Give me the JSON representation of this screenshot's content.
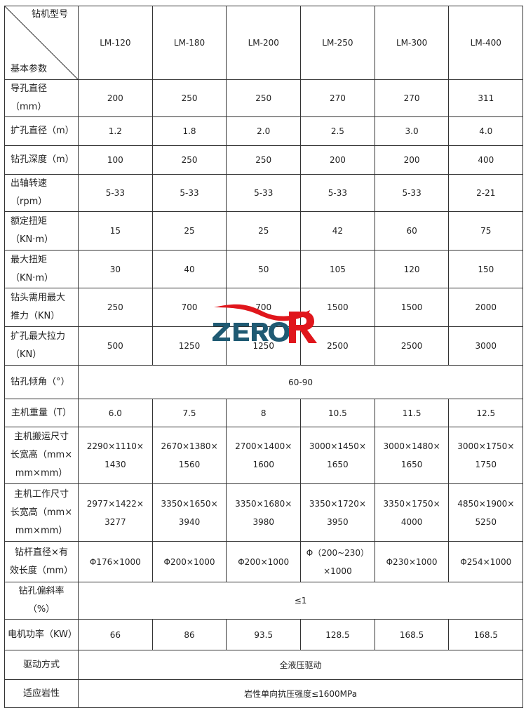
{
  "header": {
    "corner_top": "钻机型号",
    "corner_bottom": "基本参数",
    "models": [
      "LM-120",
      "LM-180",
      "LM-200",
      "LM-250",
      "LM-300",
      "LM-400"
    ]
  },
  "rows": [
    {
      "label": "导孔直径（mm）",
      "values": [
        "200",
        "250",
        "250",
        "270",
        "270",
        "311"
      ]
    },
    {
      "label": "扩孔直径（m）",
      "values": [
        "1.2",
        "1.8",
        "2.0",
        "2.5",
        "3.0",
        "4.0"
      ]
    },
    {
      "label": "钻孔深度（m）",
      "values": [
        "100",
        "250",
        "250",
        "200",
        "200",
        "400"
      ]
    },
    {
      "label": "出轴转速（rpm）",
      "values": [
        "5-33",
        "5-33",
        "5-33",
        "5-33",
        "5-33",
        "2-21"
      ]
    },
    {
      "label": "额定扭矩\n（KN·m）",
      "values": [
        "15",
        "25",
        "25",
        "42",
        "60",
        "75"
      ]
    },
    {
      "label": "最大扭矩\n（KN·m）",
      "values": [
        "30",
        "40",
        "50",
        "105",
        "120",
        "150"
      ]
    },
    {
      "label": "钻头需用最大\n推力（KN）",
      "values": [
        "250",
        "700",
        "700",
        "1500",
        "1500",
        "2000"
      ]
    },
    {
      "label": "扩孔最大拉力\n（KN）",
      "values": [
        "500",
        "1250",
        "1250",
        "2500",
        "2500",
        "3000"
      ]
    },
    {
      "label": "钻孔倾角（°）",
      "merged": "60-90"
    },
    {
      "label": "主机重量（T）",
      "values": [
        "6.0",
        "7.5",
        "8",
        "10.5",
        "11.5",
        "12.5"
      ]
    },
    {
      "label": "主机搬运尺寸\n长宽高（mm×\nmm×mm）",
      "values": [
        "2290×1110×\n1430",
        "2670×1380×\n1560",
        "2700×1400×\n1600",
        "3000×1450×\n1650",
        "3000×1480×\n1650",
        "3000×1750×\n1750"
      ]
    },
    {
      "label": "主机工作尺寸\n长宽高（mm×\nmm×mm）",
      "values": [
        "2977×1422×\n3277",
        "3350×1650×\n3940",
        "3350×1680×\n3980",
        "3350×1720×\n3950",
        "3350×1750×\n4000",
        "4850×1900×\n5250"
      ]
    },
    {
      "label": "钻杆直径×有\n效长度（mm）",
      "values": [
        "Φ176×1000",
        "Φ200×1000",
        "Φ200×1000",
        "Φ（200~230）\n×1000",
        "Φ230×1000",
        "Φ254×1000"
      ]
    },
    {
      "label": "钻孔偏斜率\n（%）",
      "merged": "≤1"
    },
    {
      "label": "电机功率（KW）",
      "values": [
        "66",
        "86",
        "93.5",
        "128.5",
        "168.5",
        "168.5"
      ]
    },
    {
      "label": "驱动方式",
      "merged": "全液压驱动"
    },
    {
      "label": "适应岩性",
      "merged": "岩性单向抗压强度≤1600MPa"
    }
  ],
  "watermark": {
    "text": "ZERO R",
    "colors": {
      "text": "#1f5a73",
      "accent": "#e0161c"
    }
  }
}
